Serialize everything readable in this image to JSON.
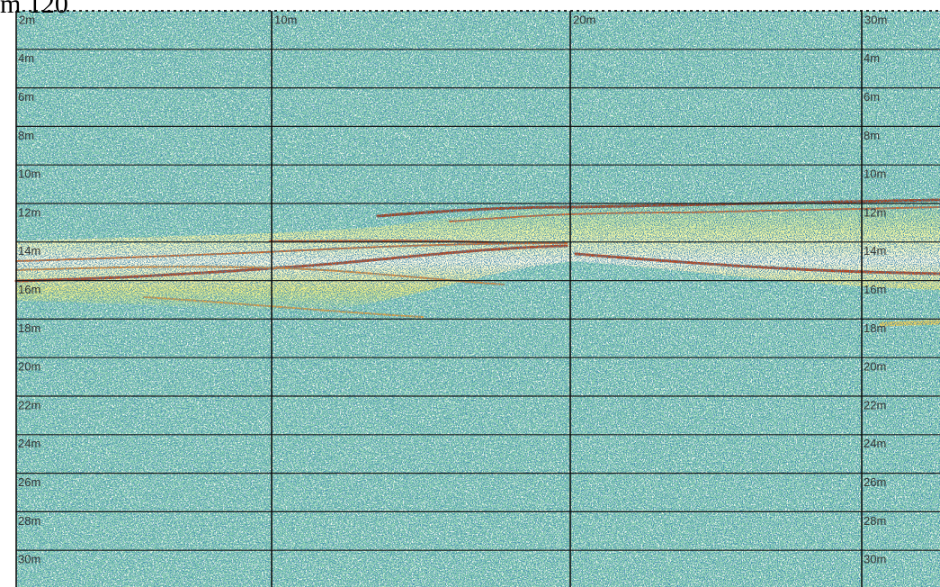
{
  "header": {
    "title": "m 120"
  },
  "profile": {
    "distance_labels": [
      "2m",
      "10m",
      "20m",
      "30m"
    ],
    "depth_labels": [
      "4m",
      "6m",
      "8m",
      "10m",
      "12m",
      "14m",
      "16m",
      "18m",
      "20m",
      "22m",
      "24m",
      "26m",
      "28m",
      "30m"
    ]
  }
}
